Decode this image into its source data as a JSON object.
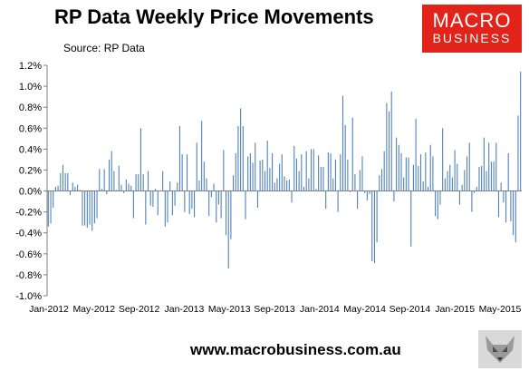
{
  "header": {
    "title": "RP Data Weekly Price Movements",
    "source": "Source: RP Data"
  },
  "logo": {
    "line1": "MACRO",
    "line2": "BUSINESS"
  },
  "footer": {
    "url": "www.macrobusiness.com.au"
  },
  "colors": {
    "bar": "#4f81bd",
    "axis": "#7f7f7f",
    "logo_bg": "#e2231a"
  },
  "chart_data": {
    "type": "bar",
    "title": "RP Data Weekly Price Movements",
    "ylim": [
      -1.0,
      1.2
    ],
    "y_ticks": [
      "-1.0%",
      "-0.8%",
      "-0.6%",
      "-0.4%",
      "-0.2%",
      "0.0%",
      "0.2%",
      "0.4%",
      "0.6%",
      "0.8%",
      "1.0%",
      "1.2%"
    ],
    "x_ticks": [
      "Jan-2012",
      "May-2012",
      "Sep-2012",
      "Jan-2013",
      "May-2013",
      "Sep-2013",
      "Jan-2014",
      "May-2014",
      "Sep-2014",
      "Jan-2015",
      "May-2015"
    ],
    "grid": false,
    "legend": "none",
    "series": [
      {
        "values": [
          -0.34,
          -0.31,
          -0.16,
          0.04,
          0.05,
          0.17,
          0.25,
          0.17,
          0.17,
          -0.04,
          0.08,
          0.04,
          0.06,
          0.01,
          -0.33,
          -0.33,
          -0.35,
          -0.32,
          -0.38,
          -0.31,
          -0.26,
          0.21,
          0.02,
          0.21,
          -0.03,
          0.3,
          0.38,
          0.19,
          0.01,
          0.24,
          0.06,
          -0.02,
          0.11,
          0.07,
          0.05,
          -0.26,
          0.16,
          0.16,
          0.6,
          0.16,
          -0.32,
          0.19,
          -0.14,
          -0.15,
          0.02,
          -0.23,
          0.0,
          0.19,
          -0.34,
          -0.3,
          0.09,
          -0.23,
          -0.14,
          0.08,
          0.62,
          0.35,
          -0.2,
          0.35,
          -0.22,
          -0.17,
          -0.25,
          0.46,
          0.1,
          0.67,
          0.28,
          0.12,
          -0.24,
          -0.06,
          0.07,
          -0.3,
          -0.13,
          -0.26,
          0.39,
          -0.42,
          -0.74,
          -0.46,
          0.15,
          0.36,
          0.62,
          0.79,
          0.62,
          -0.27,
          0.33,
          0.36,
          0.27,
          0.46,
          -0.16,
          0.29,
          0.3,
          0.19,
          0.48,
          0.22,
          0.36,
          0.08,
          0.12,
          0.26,
          0.35,
          0.14,
          0.1,
          0.11,
          -0.11,
          0.43,
          0.31,
          0.19,
          0.35,
          0.04,
          0.38,
          0.12,
          0.4,
          0.4,
          0.02,
          0.34,
          0.23,
          0.23,
          -0.17,
          0.37,
          0.36,
          0.12,
          0.3,
          -0.2,
          0.35,
          0.91,
          0.63,
          0.3,
          -0.01,
          0.7,
          0.16,
          -0.17,
          0.2,
          0.33,
          -0.02,
          -0.09,
          -0.03,
          -0.67,
          -0.69,
          -0.49,
          0.15,
          0.21,
          0.38,
          0.84,
          0.76,
          0.95,
          -0.1,
          0.51,
          0.44,
          0.36,
          0.13,
          0.32,
          0.32,
          -0.53,
          0.25,
          0.69,
          0.24,
          0.35,
          0.09,
          0.37,
          0.04,
          0.44,
          0.33,
          -0.24,
          -0.27,
          -0.13,
          0.6,
          0.12,
          0.19,
          0.25,
          0.13,
          0.39,
          0.26,
          -0.13,
          0.06,
          0.2,
          0.33,
          0.46,
          -0.2,
          -0.02,
          0.04,
          0.23,
          0.24,
          0.51,
          0.19,
          0.46,
          0.28,
          0.28,
          0.46,
          -0.25,
          0.08,
          -0.11,
          -0.3,
          0.36,
          -0.29,
          -0.42,
          -0.49,
          0.72,
          1.14
        ]
      }
    ]
  }
}
